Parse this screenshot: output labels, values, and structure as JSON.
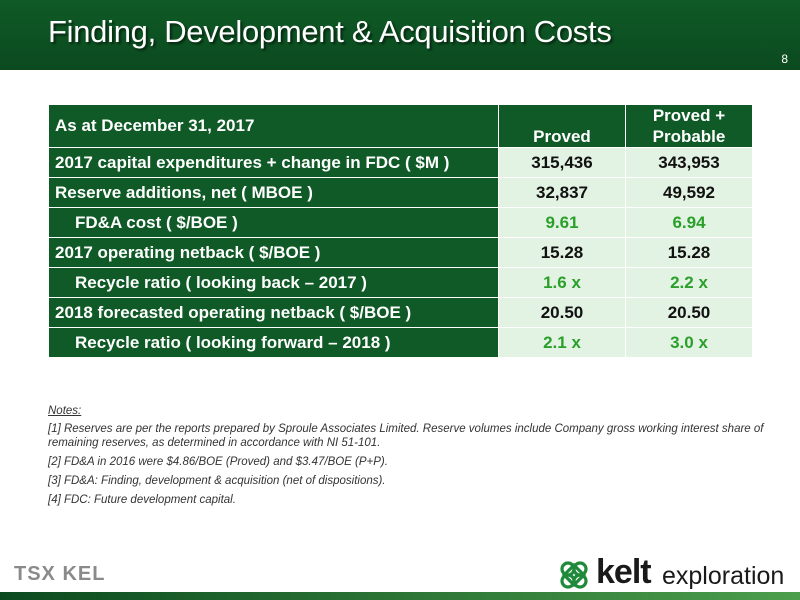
{
  "header": {
    "title": "Finding, Development & Acquisition Costs",
    "page_number": "8"
  },
  "table": {
    "header": {
      "label": "As at December 31, 2017",
      "col1": "Proved",
      "col2": "Proved + Probable"
    },
    "rows": [
      {
        "label": "2017 capital expenditures + change in FDC ( $M )",
        "proved": "315,436",
        "pp": "343,953"
      },
      {
        "label": "Reserve additions, net ( MBOE )",
        "proved": "32,837",
        "pp": "49,592"
      },
      {
        "label": "FD&A cost ( $/BOE )",
        "proved": "9.61",
        "pp": "6.94"
      },
      {
        "label": "2017 operating netback ( $/BOE )",
        "proved": "15.28",
        "pp": "15.28"
      },
      {
        "label": "Recycle ratio ( looking back – 2017 )",
        "proved": "1.6 x",
        "pp": "2.2 x"
      },
      {
        "label": "2018 forecasted operating netback ( $/BOE )",
        "proved": "20.50",
        "pp": "20.50"
      },
      {
        "label": "Recycle ratio ( looking forward – 2018 )",
        "proved": "2.1 x",
        "pp": "3.0 x"
      }
    ]
  },
  "notes": {
    "title": "Notes:",
    "items": [
      "[1] Reserves are per the reports prepared by Sproule Associates Limited. Reserve volumes include Company gross working interest share of remaining reserves, as determined in accordance with NI 51-101.",
      "[2] FD&A in 2016 were $4.86/BOE (Proved) and $3.47/BOE (P+P).",
      "[3] FD&A: Finding, development & acquisition (net of dispositions).",
      "[4] FDC: Future development capital."
    ]
  },
  "footer": {
    "ticker_logo": "TSX KEL",
    "brand_word1": "kelt",
    "brand_word2": "exploration"
  },
  "colors": {
    "brand_green": "#0f5a26",
    "value_bg": "#e3f3e3",
    "highlight_green": "#2aa02a"
  },
  "icons": {
    "brand_logo": "celtic-knot-icon"
  }
}
